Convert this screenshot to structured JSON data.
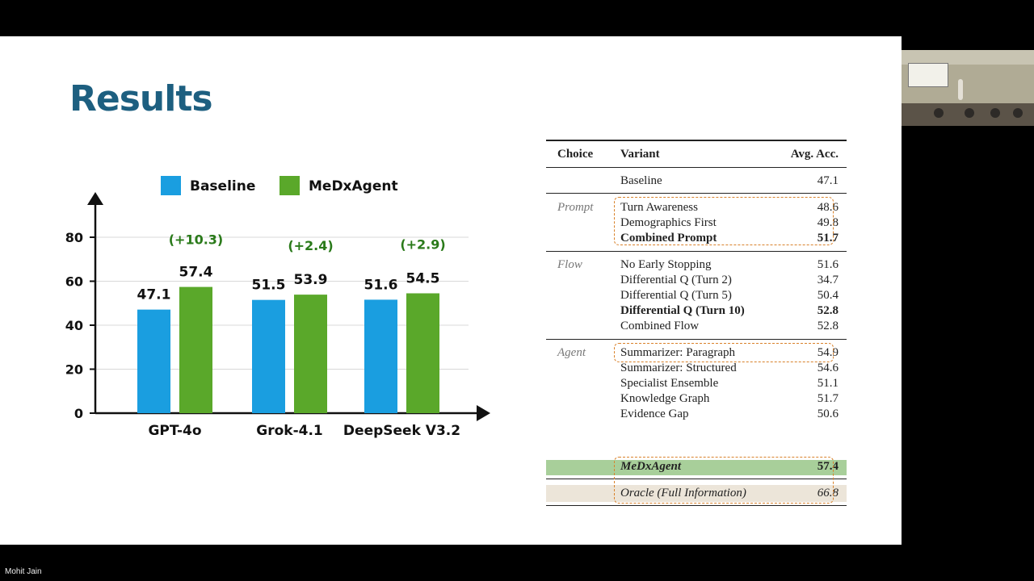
{
  "presenter_name": "Mohit Jain",
  "slide": {
    "title": "Results"
  },
  "chart_data": {
    "type": "bar",
    "categories": [
      "GPT-4o",
      "Grok-4.1",
      "DeepSeek V3.2"
    ],
    "series": [
      {
        "name": "Baseline",
        "values": [
          47.1,
          51.5,
          51.6
        ],
        "color": "#1a9ee0"
      },
      {
        "name": "MeDxAgent",
        "values": [
          57.4,
          53.9,
          54.5
        ],
        "color": "#5aa82a"
      }
    ],
    "value_labels": {
      "Baseline": [
        "47.1",
        "51.5",
        "51.6"
      ],
      "MeDxAgent": [
        "57.4",
        "53.9",
        "54.5"
      ]
    },
    "deltas": [
      "(+10.3)",
      "(+2.4)",
      "(+2.9)"
    ],
    "delta_color": "#2a7a1a",
    "yticks": [
      "0",
      "20",
      "40",
      "60",
      "80"
    ],
    "ylim": [
      0,
      80
    ],
    "grid": true,
    "legend_position": "top",
    "title": "",
    "xlabel": "",
    "ylabel": ""
  },
  "table": {
    "headers": {
      "choice": "Choice",
      "variant": "Variant",
      "acc": "Avg. Acc."
    },
    "baseline": {
      "variant": "Baseline",
      "acc": "47.1"
    },
    "groups": [
      {
        "name": "Prompt",
        "rows": [
          {
            "variant": "Turn Awareness",
            "acc": "48.6"
          },
          {
            "variant": "Demographics First",
            "acc": "49.8"
          },
          {
            "variant": "Combined Prompt",
            "acc": "51.7",
            "bold": true
          }
        ]
      },
      {
        "name": "Flow",
        "rows": [
          {
            "variant": "No Early Stopping",
            "acc": "51.6"
          },
          {
            "variant": "Differential Q (Turn 2)",
            "acc": "34.7"
          },
          {
            "variant": "Differential Q (Turn 5)",
            "acc": "50.4"
          },
          {
            "variant": "Differential Q (Turn 10)",
            "acc": "52.8",
            "bold": true
          },
          {
            "variant": "Combined Flow",
            "acc": "52.8"
          }
        ]
      },
      {
        "name": "Agent",
        "rows": [
          {
            "variant": "Summarizer: Paragraph",
            "acc": "54.9"
          },
          {
            "variant": "Summarizer: Structured",
            "acc": "54.6"
          },
          {
            "variant": "Specialist Ensemble",
            "acc": "51.1"
          },
          {
            "variant": "Knowledge Graph",
            "acc": "51.7"
          },
          {
            "variant": "Evidence Gap",
            "acc": "50.6"
          },
          {
            "variant": "MeDxAgent",
            "acc": "57.4",
            "bold": true,
            "italic": true
          }
        ]
      }
    ],
    "oracle": {
      "variant": "Oracle (Full Information)",
      "acc": "66.8"
    },
    "colors": {
      "highlight": "#a8cf9a",
      "oracle_band": "#ece5d9",
      "dash": "#d9822b"
    }
  }
}
